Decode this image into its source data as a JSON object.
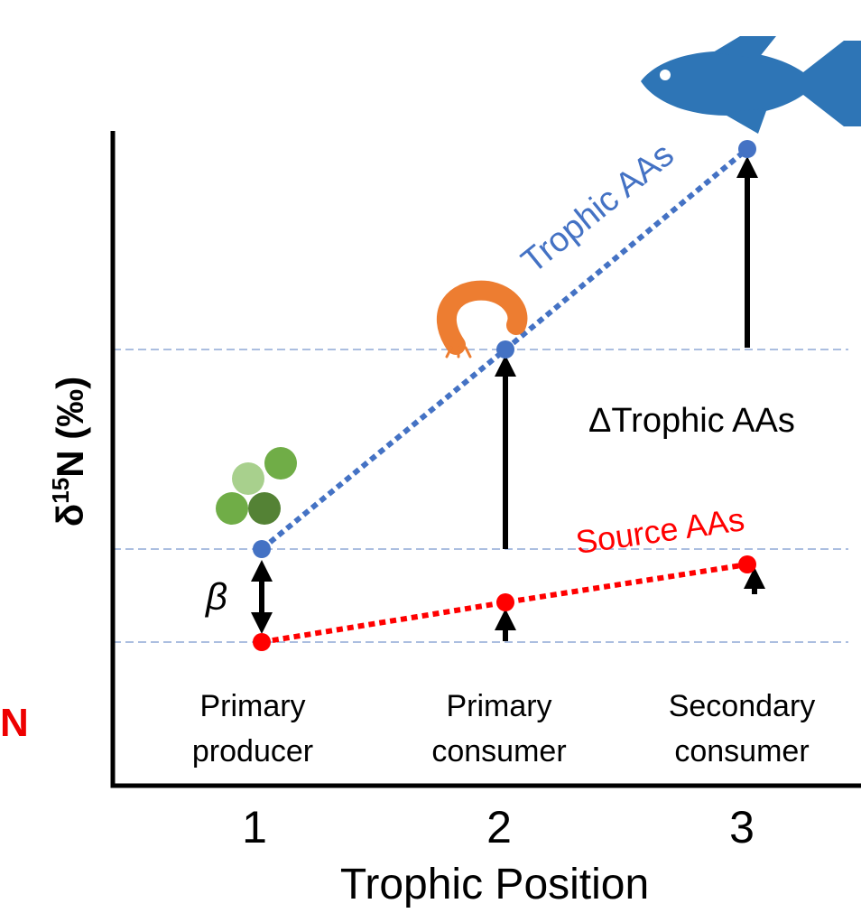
{
  "cut_label": "N",
  "y_axis": {
    "symbol": "δ",
    "superscript": "15",
    "rest": "N (‰)"
  },
  "x_axis": {
    "title": "Trophic Position",
    "ticks": [
      "1",
      "2",
      "3"
    ]
  },
  "stages": [
    {
      "line1": "Primary",
      "line2": "producer"
    },
    {
      "line1": "Primary",
      "line2": "consumer"
    },
    {
      "line1": "Secondary",
      "line2": "consumer"
    }
  ],
  "series": {
    "trophic": "Trophic AAs",
    "source": "Source AAs"
  },
  "annotations": {
    "beta": "β",
    "delta": "ΔTrophic AAs"
  }
}
